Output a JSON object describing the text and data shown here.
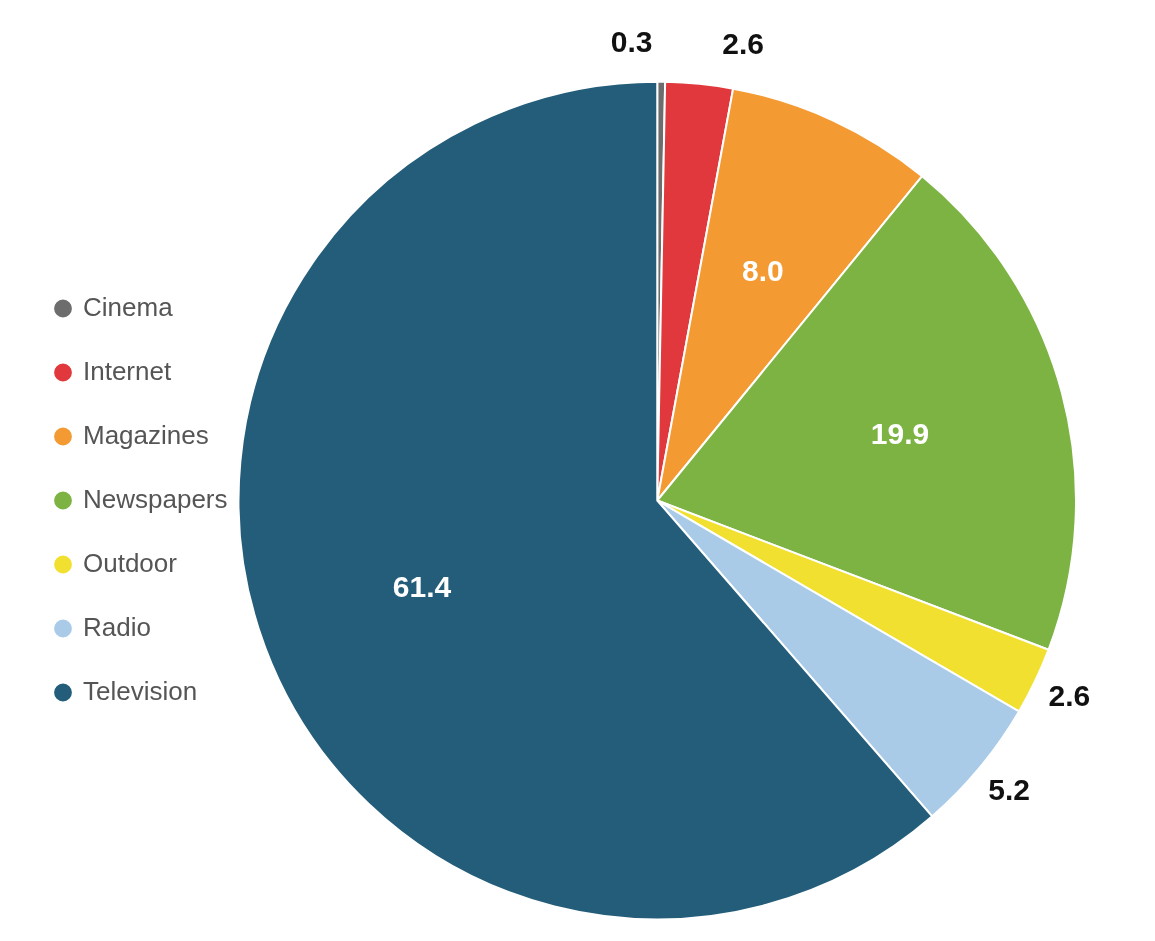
{
  "chart_data": {
    "type": "pie",
    "categories": [
      "Cinema",
      "Internet",
      "Magazines",
      "Newspapers",
      "Outdoor",
      "Radio",
      "Television"
    ],
    "values": [
      0.3,
      2.6,
      8.0,
      19.9,
      2.6,
      5.2,
      61.4
    ],
    "colors": [
      "#6d6d6d",
      "#e0383c",
      "#f39a32",
      "#7cb342",
      "#f2e030",
      "#a9cbe8",
      "#245d7a"
    ],
    "value_labels": [
      "0.3",
      "2.6",
      "8.0",
      "19.9",
      "2.6",
      "5.2",
      "61.4"
    ],
    "legend": "left"
  }
}
